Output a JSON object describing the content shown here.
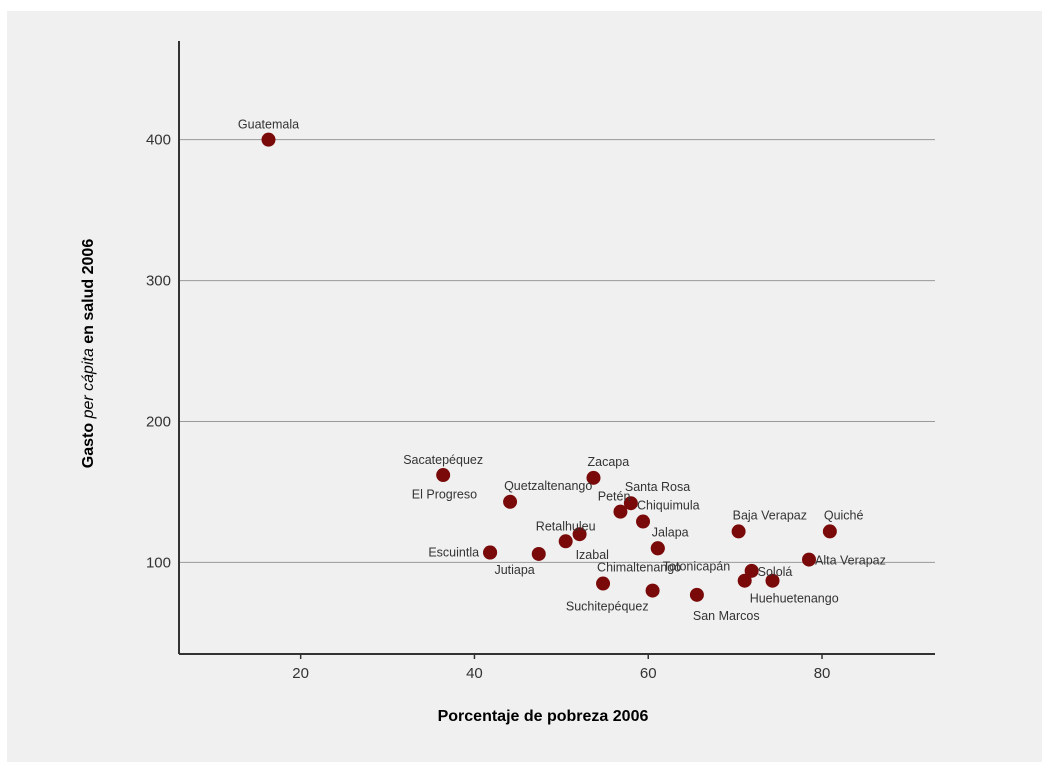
{
  "chart_data": {
    "type": "scatter",
    "title": "",
    "xlabel": "Porcentaje de pobreza 2006",
    "ylabel_parts": [
      {
        "text": "Gasto ",
        "style": "bold"
      },
      {
        "text": "per cápita",
        "style": "italic"
      },
      {
        "text": " en  salud 2006",
        "style": "bold"
      }
    ],
    "xlim": [
      6,
      93
    ],
    "ylim": [
      35,
      470
    ],
    "xticks": [
      20,
      40,
      60,
      80
    ],
    "yticks": [
      100,
      200,
      300,
      400
    ],
    "grid": "horizontal",
    "point_color": "#7a0a0a",
    "points": [
      {
        "label": "Guatemala",
        "x": 16.3,
        "y": 400,
        "label_pos": "above"
      },
      {
        "label": "Sacatepéquez",
        "x": 36.4,
        "y": 162,
        "label_pos": "above"
      },
      {
        "label": "Quetzaltenango",
        "x": 44.1,
        "y": 143,
        "label_pos": "above-right"
      },
      {
        "label": "El Progreso",
        "x": 41.8,
        "y": 107,
        "label_pos": "far-above-left"
      },
      {
        "label": "Escuintla",
        "x": 41.8,
        "y": 107,
        "label_pos": "left"
      },
      {
        "label": "Jutiapa",
        "x": 47.4,
        "y": 106,
        "label_pos": "below-left"
      },
      {
        "label": "Retalhuleu",
        "x": 50.5,
        "y": 115,
        "label_pos": "above"
      },
      {
        "label": "Izabal",
        "x": 52.1,
        "y": 120,
        "label_pos": "below"
      },
      {
        "label": "Zacapa",
        "x": 53.7,
        "y": 160,
        "label_pos": "above-right"
      },
      {
        "label": "Santa Rosa",
        "x": 58.0,
        "y": 142,
        "label_pos": "above-right"
      },
      {
        "label": "Petén",
        "x": 56.8,
        "y": 136,
        "label_pos": "above-left"
      },
      {
        "label": "Chiquimula",
        "x": 59.4,
        "y": 129,
        "label_pos": "above-right"
      },
      {
        "label": "Jalapa",
        "x": 61.1,
        "y": 110,
        "label_pos": "above-right"
      },
      {
        "label": "Totonicapán",
        "x": 61.1,
        "y": 110,
        "label_pos": "below-right"
      },
      {
        "label": "Chimaltenango",
        "x": 54.8,
        "y": 85,
        "label_pos": "above-right"
      },
      {
        "label": "Suchitepéquez",
        "x": 60.5,
        "y": 80,
        "label_pos": "below-left"
      },
      {
        "label": "San Marcos",
        "x": 65.6,
        "y": 77,
        "label_pos": "below"
      },
      {
        "label": "Baja Verapaz",
        "x": 70.4,
        "y": 122,
        "label_pos": "above-right"
      },
      {
        "label": "Quiché",
        "x": 80.9,
        "y": 122,
        "label_pos": "above-right"
      },
      {
        "label": "Sololá",
        "x": 71.9,
        "y": 94,
        "label_pos": "right"
      },
      {
        "label": "Alta Verapaz",
        "x": 78.5,
        "y": 102,
        "label_pos": "right"
      },
      {
        "label": "Huehuetenango",
        "x": 71.1,
        "y": 87,
        "label_pos": "below-right"
      },
      {
        "label": "",
        "x": 74.3,
        "y": 87,
        "label_pos": "none"
      }
    ]
  }
}
